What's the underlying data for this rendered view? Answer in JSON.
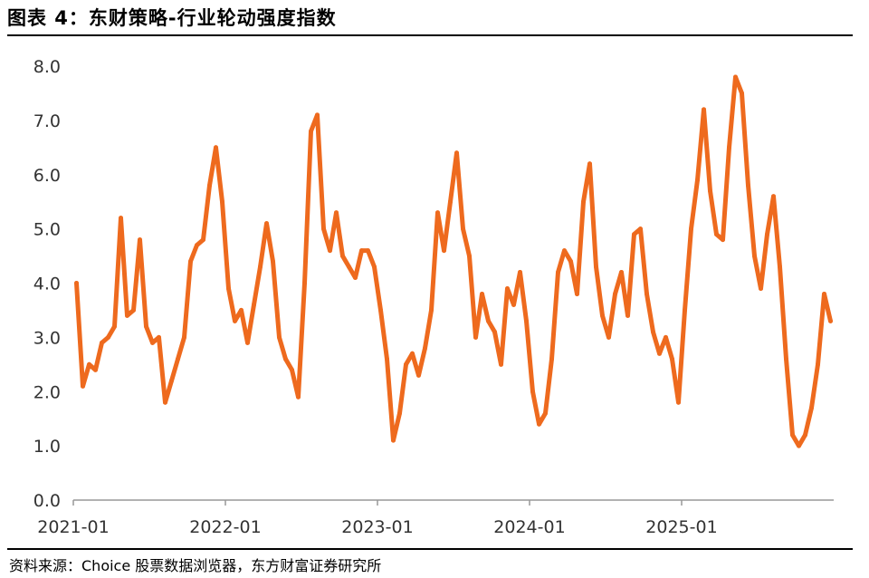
{
  "figure": {
    "title": "图表 4：东财策略-行业轮动强度指数",
    "source": "资料来源：Choice 股票数据浏览器，东方财富证券研究所"
  },
  "colors": {
    "line": "#EE6A1E",
    "axis": "#999999",
    "text": "#333333"
  },
  "chart_data": {
    "type": "line",
    "title": "",
    "xlabel": "",
    "ylabel": "",
    "ylim": [
      0,
      8
    ],
    "xlim": [
      "2021-01",
      "2025-12"
    ],
    "yticks": [
      "0.0",
      "1.0",
      "2.0",
      "3.0",
      "4.0",
      "5.0",
      "6.0",
      "7.0",
      "8.0"
    ],
    "xticks": [
      "2021-01",
      "2022-01",
      "2023-01",
      "2024-01",
      "2025-01"
    ],
    "grid": false,
    "legend": "none",
    "series": [
      {
        "x": [
          "2021-01",
          "2021-01",
          "2021-02",
          "2021-02",
          "2021-03",
          "2021-03",
          "2021-04",
          "2021-04",
          "2021-05",
          "2021-05",
          "2021-06",
          "2021-06",
          "2021-07",
          "2021-07",
          "2021-08",
          "2021-08",
          "2021-09",
          "2021-09",
          "2021-10",
          "2021-10",
          "2021-11",
          "2021-11",
          "2021-12",
          "2021-12",
          "2022-01",
          "2022-01",
          "2022-02",
          "2022-02",
          "2022-03",
          "2022-03",
          "2022-04",
          "2022-04",
          "2022-05",
          "2022-05",
          "2022-06",
          "2022-06",
          "2022-07",
          "2022-07",
          "2022-08",
          "2022-08",
          "2022-09",
          "2022-09",
          "2022-10",
          "2022-10",
          "2022-11",
          "2022-11",
          "2022-12",
          "2022-12",
          "2023-01",
          "2023-01",
          "2023-02",
          "2023-02",
          "2023-03",
          "2023-03",
          "2023-04",
          "2023-04",
          "2023-05",
          "2023-05",
          "2023-06",
          "2023-06",
          "2023-07",
          "2023-07",
          "2023-08",
          "2023-08",
          "2023-09",
          "2023-09",
          "2023-10",
          "2023-10",
          "2023-11",
          "2023-11",
          "2023-12",
          "2023-12",
          "2024-01",
          "2024-01",
          "2024-02",
          "2024-02",
          "2024-03",
          "2024-03",
          "2024-04",
          "2024-04",
          "2024-05",
          "2024-05",
          "2024-06",
          "2024-06",
          "2024-07",
          "2024-07",
          "2024-08",
          "2024-08",
          "2024-09",
          "2024-09",
          "2024-10",
          "2024-10",
          "2024-11",
          "2024-11",
          "2024-12",
          "2024-12",
          "2025-01",
          "2025-01",
          "2025-02",
          "2025-02",
          "2025-03",
          "2025-03",
          "2025-04",
          "2025-04",
          "2025-05",
          "2025-05",
          "2025-06",
          "2025-06",
          "2025-07",
          "2025-07",
          "2025-08",
          "2025-08",
          "2025-09",
          "2025-09",
          "2025-10",
          "2025-10",
          "2025-11",
          "2025-11",
          "2025-12",
          "2025-12"
        ],
        "values": [
          4.0,
          2.1,
          2.5,
          2.4,
          2.9,
          3.0,
          3.2,
          5.2,
          3.4,
          3.5,
          4.8,
          3.2,
          2.9,
          3.0,
          1.8,
          2.2,
          2.6,
          3.0,
          4.4,
          4.7,
          4.8,
          5.8,
          6.5,
          5.5,
          3.9,
          3.3,
          3.5,
          2.9,
          3.6,
          4.3,
          5.1,
          4.4,
          3.0,
          2.6,
          2.4,
          1.9,
          4.0,
          6.8,
          7.1,
          5.0,
          4.6,
          5.3,
          4.5,
          4.3,
          4.1,
          4.6,
          4.6,
          4.3,
          3.5,
          2.6,
          1.1,
          1.6,
          2.5,
          2.7,
          2.3,
          2.8,
          3.5,
          5.3,
          4.6,
          5.5,
          6.4,
          5.0,
          4.5,
          3.0,
          3.8,
          3.3,
          3.1,
          2.5,
          3.9,
          3.6,
          4.2,
          3.3,
          2.0,
          1.4,
          1.6,
          2.6,
          4.2,
          4.6,
          4.4,
          3.8,
          5.5,
          6.2,
          4.3,
          3.4,
          3.0,
          3.8,
          4.2,
          3.4,
          4.9,
          5.0,
          3.8,
          3.1,
          2.7,
          3.0,
          2.6,
          1.8,
          3.5,
          5.0,
          5.9,
          7.2,
          5.7,
          4.9,
          4.8,
          6.5,
          7.8,
          7.5,
          5.8,
          4.5,
          3.9,
          4.9,
          5.6,
          4.3,
          2.6,
          1.2,
          1.0,
          1.2,
          1.7,
          2.5,
          3.8,
          3.3
        ]
      }
    ]
  }
}
